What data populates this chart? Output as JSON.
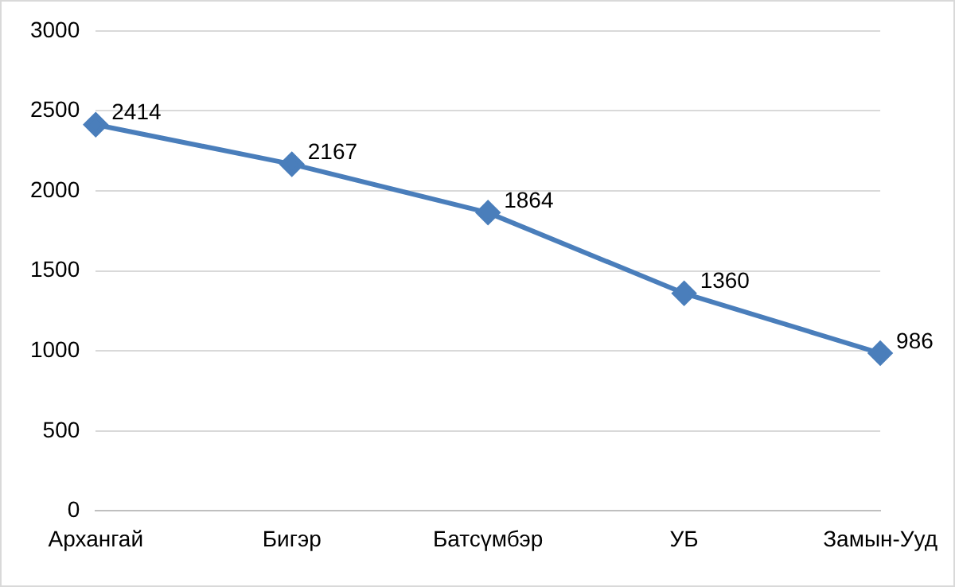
{
  "chart_data": {
    "type": "line",
    "categories": [
      "Архангай",
      "Бигэр",
      "Батсүмбэр",
      "УБ",
      "Замын-Ууд"
    ],
    "series": [
      {
        "color": "#4a7ebb",
        "values": [
          2414,
          2167,
          1864,
          1360,
          986
        ]
      }
    ],
    "ylim": [
      0,
      3000
    ],
    "yticks": [
      0,
      500,
      1000,
      1500,
      2000,
      2500,
      3000
    ],
    "grid": "y",
    "legend": false,
    "marker": "diamond",
    "line_style": "solid",
    "data_labels": true
  }
}
